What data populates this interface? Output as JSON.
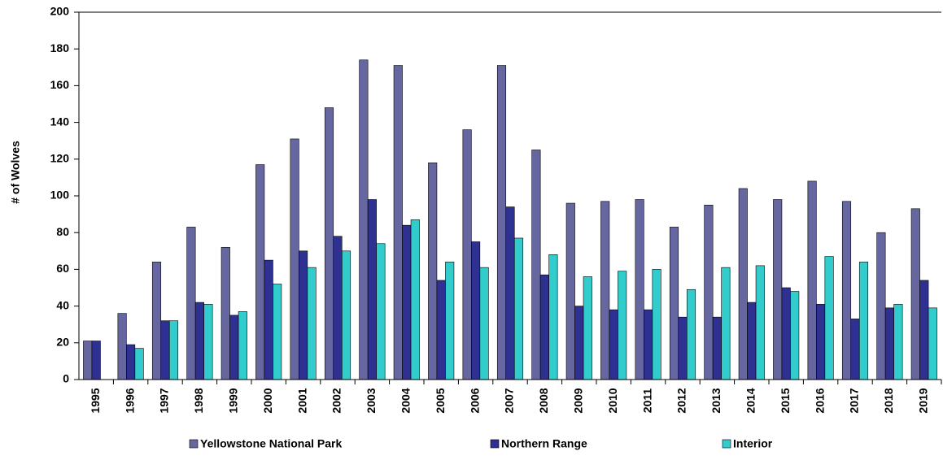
{
  "chart_data": {
    "type": "bar",
    "y_label": "# of Wolves",
    "categories": [
      "1995",
      "1996",
      "1997",
      "1998",
      "1999",
      "2000",
      "2001",
      "2002",
      "2003",
      "2004",
      "2005",
      "2006",
      "2007",
      "2008",
      "2009",
      "2010",
      "2011",
      "2012",
      "2013",
      "2014",
      "2015",
      "2016",
      "2017",
      "2018",
      "2019"
    ],
    "series": [
      {
        "name": "Yellowstone National Park",
        "color": "#6666a0",
        "values": [
          21,
          36,
          64,
          83,
          72,
          117,
          131,
          148,
          174,
          171,
          118,
          136,
          171,
          125,
          96,
          97,
          98,
          83,
          95,
          104,
          98,
          108,
          97,
          80,
          93
        ]
      },
      {
        "name": "Northern Range",
        "color": "#2e3192",
        "values": [
          21,
          19,
          32,
          42,
          35,
          65,
          70,
          78,
          98,
          84,
          54,
          75,
          94,
          57,
          40,
          38,
          38,
          34,
          34,
          42,
          50,
          41,
          33,
          39,
          54
        ]
      },
      {
        "name": "Interior",
        "color": "#33cccc",
        "values": [
          null,
          17,
          32,
          41,
          37,
          52,
          61,
          70,
          74,
          87,
          64,
          61,
          77,
          68,
          56,
          59,
          60,
          49,
          61,
          62,
          48,
          67,
          64,
          41,
          39
        ]
      }
    ],
    "ylim": [
      0,
      200
    ],
    "yticks": [
      0,
      20,
      40,
      60,
      80,
      100,
      120,
      140,
      160,
      180,
      200
    ],
    "legend": "bottom"
  }
}
